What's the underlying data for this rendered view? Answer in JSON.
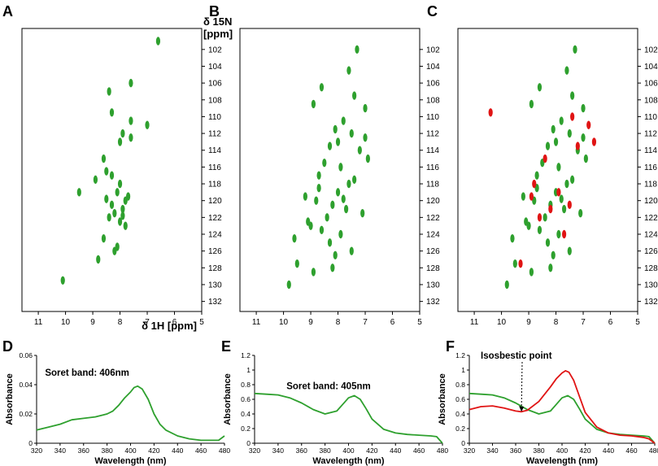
{
  "colors": {
    "green": "#2ea02e",
    "red": "#e01414",
    "axis": "#000000"
  },
  "chart_data": [
    {
      "panel": "A",
      "type": "scatter",
      "xlabel": "δ 1H [ppm]",
      "ylabel": "δ 15N [ppm]",
      "xlim": [
        11.6,
        5.0
      ],
      "ylim": [
        133.2,
        99.5
      ],
      "xticks": [
        "11",
        "10",
        "9",
        "8",
        "7",
        "6",
        "5"
      ],
      "yticks": [
        "102",
        "104",
        "106",
        "108",
        "110",
        "112",
        "114",
        "116",
        "118",
        "120",
        "122",
        "124",
        "126",
        "128",
        "130",
        "132"
      ],
      "series": [
        {
          "name": "green",
          "x": [
            7.6,
            8.4,
            7.9,
            7.0,
            8.6,
            8.5,
            8.0,
            7.6,
            8.9,
            8.1,
            7.8,
            8.3,
            7.9,
            7.7,
            8.4,
            8.0,
            8.2,
            7.8,
            8.6,
            8.1,
            7.9,
            8.3,
            8.5,
            8.0,
            7.6,
            8.2,
            8.8,
            9.5,
            10.1,
            8.3,
            6.6
          ],
          "y": [
            106.0,
            107.0,
            112.0,
            111.0,
            115.0,
            116.5,
            118.0,
            112.5,
            117.5,
            119.0,
            120.0,
            120.5,
            121.0,
            119.5,
            122.0,
            122.5,
            121.5,
            123.0,
            124.5,
            125.5,
            121.8,
            117.0,
            119.8,
            113.0,
            110.5,
            126.0,
            127.0,
            119.0,
            129.5,
            109.5,
            101.0
          ]
        }
      ]
    },
    {
      "panel": "B",
      "type": "scatter",
      "xlim": [
        11.6,
        5.0
      ],
      "ylim": [
        133.2,
        99.5
      ],
      "xticks": [
        "11",
        "10",
        "9",
        "8",
        "7",
        "6",
        "5"
      ],
      "yticks": [
        "102",
        "104",
        "106",
        "108",
        "110",
        "112",
        "114",
        "116",
        "118",
        "120",
        "122",
        "124",
        "126",
        "128",
        "130",
        "132"
      ],
      "series": [
        {
          "name": "green",
          "x": [
            7.3,
            7.6,
            8.6,
            7.4,
            8.9,
            7.0,
            7.8,
            8.1,
            7.5,
            8.3,
            7.2,
            8.5,
            7.9,
            8.7,
            7.6,
            8.0,
            9.2,
            8.8,
            8.2,
            7.7,
            7.1,
            8.4,
            9.0,
            8.6,
            7.9,
            8.3,
            7.5,
            8.1,
            9.5,
            8.9,
            9.8,
            7.4,
            6.9,
            8.0,
            8.7,
            9.1,
            7.8,
            7.0,
            8.2,
            9.6
          ],
          "y": [
            102.0,
            104.5,
            106.5,
            107.5,
            108.5,
            109.0,
            110.5,
            111.5,
            112.0,
            113.5,
            114.0,
            115.5,
            116.0,
            117.0,
            118.0,
            119.0,
            119.5,
            120.0,
            120.5,
            121.0,
            121.5,
            122.0,
            123.0,
            123.5,
            124.0,
            125.0,
            126.0,
            126.5,
            127.5,
            128.5,
            130.0,
            117.5,
            115.0,
            113.0,
            118.5,
            122.5,
            119.8,
            112.5,
            128.0,
            124.5
          ]
        }
      ]
    },
    {
      "panel": "C",
      "type": "scatter",
      "xlim": [
        11.6,
        5.0
      ],
      "ylim": [
        133.2,
        99.5
      ],
      "xticks": [
        "11",
        "10",
        "9",
        "8",
        "7",
        "6",
        "5"
      ],
      "yticks": [
        "102",
        "104",
        "106",
        "108",
        "110",
        "112",
        "114",
        "116",
        "118",
        "120",
        "122",
        "124",
        "126",
        "128",
        "130",
        "132"
      ],
      "series": [
        {
          "name": "green",
          "x": [
            7.3,
            7.6,
            8.6,
            7.4,
            8.9,
            7.0,
            7.8,
            8.1,
            7.5,
            8.3,
            7.2,
            8.5,
            7.9,
            8.7,
            7.6,
            8.0,
            9.2,
            8.8,
            8.2,
            7.7,
            7.1,
            8.4,
            9.0,
            8.6,
            7.9,
            8.3,
            7.5,
            8.1,
            9.5,
            8.9,
            9.8,
            7.4,
            6.9,
            8.0,
            8.7,
            9.1,
            7.8,
            7.0,
            8.2,
            9.6
          ],
          "y": [
            102.0,
            104.5,
            106.5,
            107.5,
            108.5,
            109.0,
            110.5,
            111.5,
            112.0,
            113.5,
            114.0,
            115.5,
            116.0,
            117.0,
            118.0,
            119.0,
            119.5,
            120.0,
            120.5,
            121.0,
            121.5,
            122.0,
            123.0,
            123.5,
            124.0,
            125.0,
            126.0,
            126.5,
            127.5,
            128.5,
            130.0,
            117.5,
            115.0,
            113.0,
            118.5,
            122.5,
            119.8,
            112.5,
            128.0,
            124.5
          ]
        },
        {
          "name": "red",
          "x": [
            10.4,
            7.2,
            8.9,
            7.5,
            8.2,
            8.6,
            7.9,
            8.4,
            7.7,
            6.6,
            6.8,
            8.8,
            9.3,
            7.4
          ],
          "y": [
            109.5,
            113.5,
            119.5,
            120.5,
            121.0,
            122.0,
            119.0,
            115.0,
            124.0,
            113.0,
            111.0,
            118.0,
            127.5,
            110.0
          ]
        }
      ]
    },
    {
      "panel": "D",
      "type": "line",
      "annotation": "Soret band: 406nm",
      "xlabel": "Wavelength (nm)",
      "ylabel": "Absorbance",
      "xlim": [
        320,
        480
      ],
      "ylim": [
        0,
        0.06
      ],
      "xticks": [
        "320",
        "340",
        "360",
        "380",
        "400",
        "420",
        "440",
        "460",
        "480"
      ],
      "yticks": [
        "0",
        "0.02",
        "0.04",
        "0.06"
      ],
      "series": [
        {
          "name": "green",
          "x": [
            320,
            330,
            340,
            350,
            360,
            370,
            380,
            385,
            390,
            395,
            400,
            403,
            406,
            410,
            415,
            420,
            425,
            430,
            440,
            450,
            460,
            470,
            475,
            480
          ],
          "y": [
            0.009,
            0.011,
            0.013,
            0.016,
            0.017,
            0.018,
            0.02,
            0.022,
            0.026,
            0.031,
            0.035,
            0.038,
            0.039,
            0.037,
            0.03,
            0.02,
            0.013,
            0.009,
            0.005,
            0.003,
            0.002,
            0.002,
            0.002,
            0.005
          ]
        }
      ]
    },
    {
      "panel": "E",
      "type": "line",
      "annotation": "Soret band: 405nm",
      "xlabel": "Wavelength (nm)",
      "ylabel": "Absorbance",
      "xlim": [
        320,
        480
      ],
      "ylim": [
        0,
        1.2
      ],
      "xticks": [
        "320",
        "340",
        "360",
        "380",
        "400",
        "420",
        "440",
        "460",
        "480"
      ],
      "yticks": [
        "0",
        "0.2",
        "0.4",
        "0.6",
        "0.8",
        "1",
        "1.2"
      ],
      "series": [
        {
          "name": "green",
          "x": [
            320,
            330,
            340,
            350,
            360,
            370,
            380,
            390,
            395,
            400,
            405,
            410,
            415,
            420,
            430,
            440,
            450,
            460,
            470,
            475,
            480
          ],
          "y": [
            0.68,
            0.67,
            0.66,
            0.62,
            0.55,
            0.46,
            0.4,
            0.44,
            0.53,
            0.62,
            0.65,
            0.6,
            0.47,
            0.33,
            0.19,
            0.14,
            0.12,
            0.11,
            0.1,
            0.09,
            0.0
          ]
        }
      ]
    },
    {
      "panel": "F",
      "type": "line",
      "annotation": "Isosbestic point",
      "xlabel": "Wavelength (nm)",
      "ylabel": "Absorbance",
      "xlim": [
        320,
        480
      ],
      "ylim": [
        0,
        1.2
      ],
      "xticks": [
        "320",
        "340",
        "360",
        "380",
        "400",
        "420",
        "440",
        "460",
        "480"
      ],
      "yticks": [
        "0",
        "0.2",
        "0.4",
        "0.6",
        "0.8",
        "1",
        "1.2"
      ],
      "series": [
        {
          "name": "green",
          "x": [
            320,
            330,
            340,
            350,
            360,
            370,
            380,
            390,
            395,
            400,
            405,
            410,
            415,
            420,
            430,
            440,
            450,
            460,
            470,
            475,
            480
          ],
          "y": [
            0.68,
            0.67,
            0.66,
            0.62,
            0.55,
            0.46,
            0.4,
            0.44,
            0.53,
            0.62,
            0.65,
            0.6,
            0.47,
            0.33,
            0.19,
            0.14,
            0.12,
            0.11,
            0.1,
            0.09,
            0.0
          ]
        },
        {
          "name": "red",
          "x": [
            320,
            330,
            340,
            350,
            360,
            365,
            370,
            380,
            390,
            395,
            400,
            403,
            406,
            410,
            415,
            420,
            430,
            440,
            450,
            460,
            470,
            475,
            480
          ],
          "y": [
            0.46,
            0.5,
            0.51,
            0.48,
            0.44,
            0.43,
            0.45,
            0.57,
            0.77,
            0.88,
            0.96,
            0.99,
            0.97,
            0.86,
            0.64,
            0.42,
            0.22,
            0.14,
            0.11,
            0.1,
            0.08,
            0.06,
            0.0
          ]
        }
      ]
    }
  ]
}
